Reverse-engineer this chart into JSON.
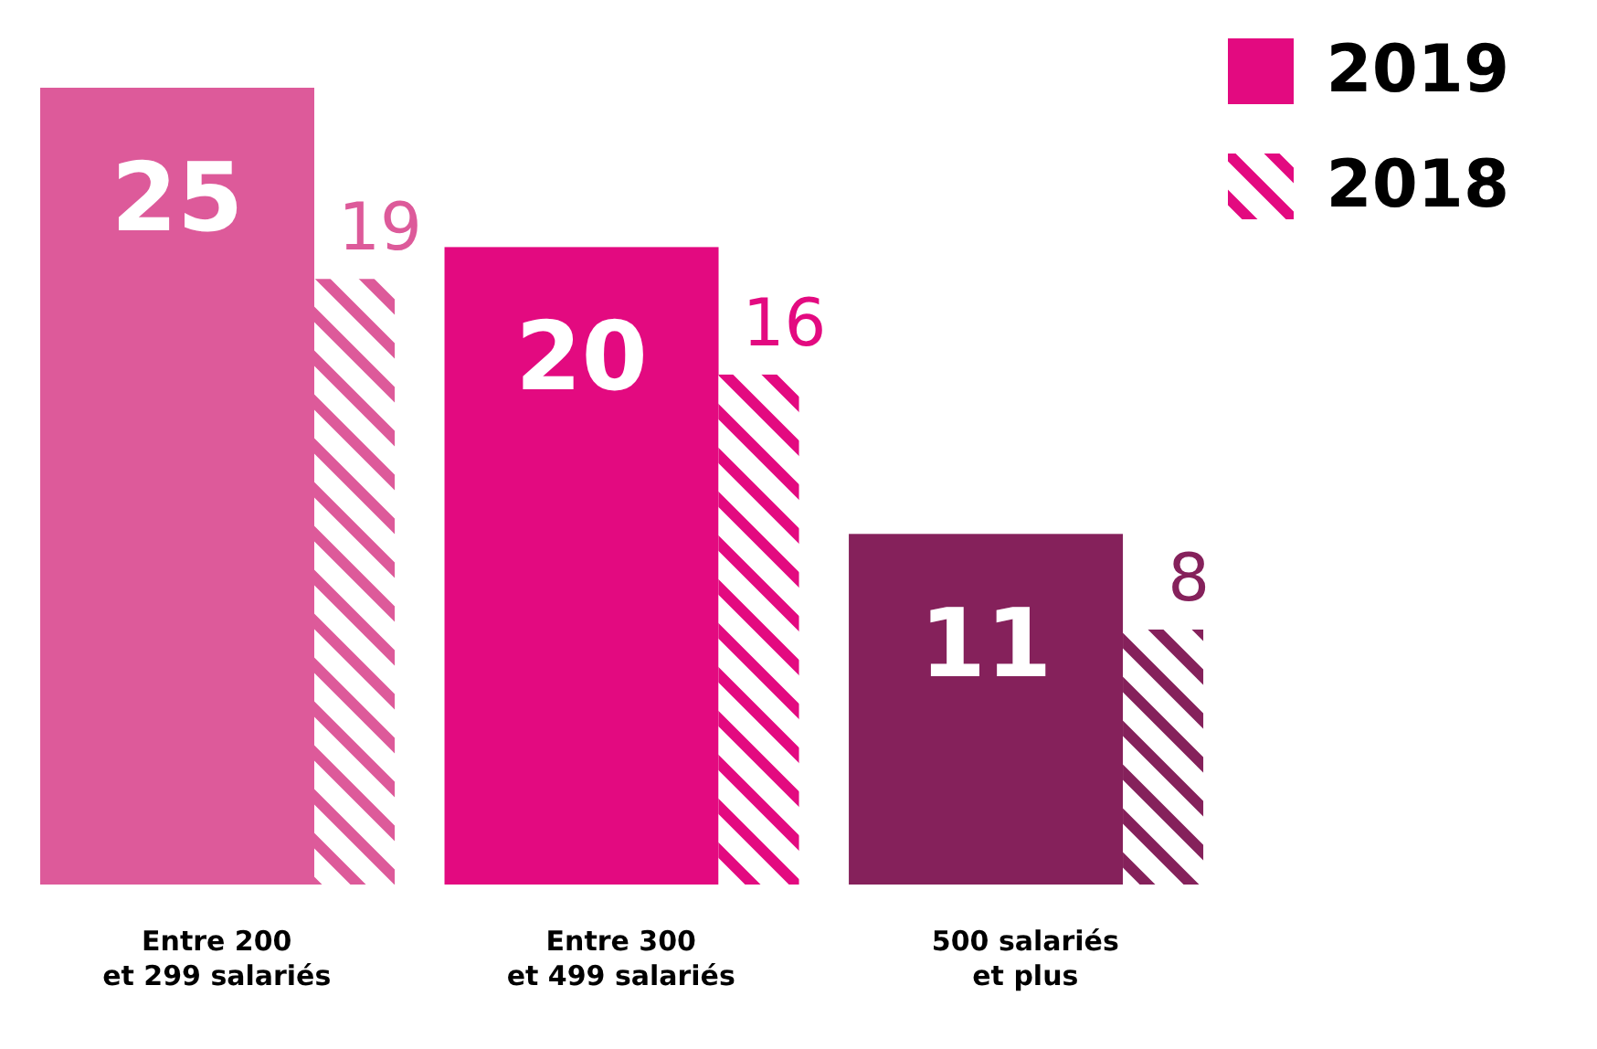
{
  "chart_data": {
    "type": "bar",
    "categories": [
      "Entre 200 et 299 salariés",
      "Entre 300 et 499 salariés",
      "500 salariés et plus"
    ],
    "series": [
      {
        "name": "2019",
        "color": "#e30a80",
        "colors": [
          "#dd5a9a",
          "#e30a80",
          "#85215b"
        ],
        "values": [
          25,
          20,
          11
        ]
      },
      {
        "name": "2018",
        "color": "#e30a80",
        "colors": [
          "#dd5a9a",
          "#e30a80",
          "#85215b"
        ],
        "values": [
          19,
          16,
          8
        ]
      }
    ],
    "ylim": [
      0,
      25
    ],
    "data_labels": true,
    "legend": "top right",
    "grid": false,
    "tick_labels": "x"
  }
}
